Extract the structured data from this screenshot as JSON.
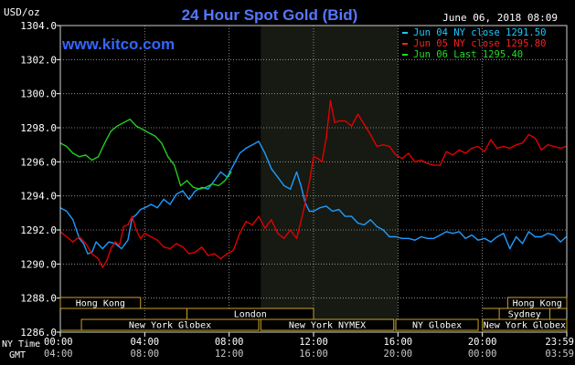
{
  "chart_data": {
    "type": "line",
    "title": "24 Hour Spot Gold (Bid)",
    "website": "www.kitco.com",
    "unit_label": "USD/oz",
    "date_label": "June 06, 2018 08:09",
    "ylim": [
      1286.0,
      1304.0
    ],
    "y_ticks": [
      "1304.0",
      "1302.0",
      "1300.0",
      "1298.0",
      "1296.0",
      "1294.0",
      "1292.0",
      "1290.0",
      "1288.0",
      "1286.0"
    ],
    "x_ticks_ny": [
      "00:00",
      "04:00",
      "08:00",
      "12:00",
      "16:00",
      "20:00",
      "23:59"
    ],
    "x_ticks_gmt": [
      "04:00",
      "08:00",
      "12:00",
      "16:00",
      "20:00",
      "00:00",
      "03:59"
    ],
    "x_label_ny": "NY Time",
    "x_label_gmt": "GMT",
    "colors": {
      "cyan": "#1e9bff",
      "red": "#e00000",
      "green": "#22cc22",
      "title": "#5577ff",
      "axis_text": "#ffffff",
      "grid": "#b0b0b0",
      "box": "#c8a228"
    },
    "legend": [
      {
        "label": "Jun 04 NY close 1291.50",
        "color": "#1ec8ff"
      },
      {
        "label": "Jun 05 NY close 1295.80",
        "color": "#ff1e1e"
      },
      {
        "label": "Jun 06 Last 1295.40",
        "color": "#22dd22"
      }
    ],
    "x_range_hours": [
      0,
      24
    ],
    "highlight_band_hours": [
      9.5,
      16.0
    ],
    "series": [
      {
        "name": "Jun 04 NY close 1291.50",
        "color": "#1e9bff",
        "x": [
          0,
          0.3,
          0.6,
          0.9,
          1.1,
          1.3,
          1.5,
          1.7,
          2.0,
          2.3,
          2.6,
          2.9,
          3.2,
          3.4,
          3.6,
          3.8,
          4.0,
          4.3,
          4.6,
          4.9,
          5.2,
          5.5,
          5.8,
          6.1,
          6.4,
          6.7,
          7.0,
          7.3,
          7.6,
          7.9,
          8.2,
          8.5,
          8.8,
          9.1,
          9.4,
          9.7,
          10.0,
          10.3,
          10.6,
          10.9,
          11.2,
          11.4,
          11.6,
          11.8,
          12.0,
          12.3,
          12.6,
          12.9,
          13.2,
          13.5,
          13.8,
          14.1,
          14.4,
          14.7,
          15.0,
          15.3,
          15.6,
          15.9,
          16.2,
          16.5,
          16.8,
          17.1,
          17.4,
          17.7,
          18.0,
          18.3,
          18.6,
          18.9,
          19.2,
          19.5,
          19.8,
          20.1,
          20.4,
          20.7,
          21.0,
          21.3,
          21.6,
          21.9,
          22.2,
          22.5,
          22.8,
          23.1,
          23.4,
          23.7,
          23.98
        ],
        "values": [
          1293.3,
          1293.1,
          1292.6,
          1291.5,
          1291.2,
          1290.6,
          1290.7,
          1291.3,
          1290.9,
          1291.3,
          1291.2,
          1290.9,
          1291.4,
          1292.7,
          1292.9,
          1293.2,
          1293.3,
          1293.5,
          1293.3,
          1293.8,
          1293.5,
          1294.1,
          1294.3,
          1293.8,
          1294.3,
          1294.5,
          1294.4,
          1294.9,
          1295.4,
          1295.1,
          1295.8,
          1296.5,
          1296.8,
          1297.0,
          1297.2,
          1296.5,
          1295.6,
          1295.1,
          1294.6,
          1294.4,
          1295.4,
          1294.6,
          1293.6,
          1293.1,
          1293.1,
          1293.3,
          1293.4,
          1293.1,
          1293.2,
          1292.8,
          1292.8,
          1292.4,
          1292.3,
          1292.6,
          1292.2,
          1292.0,
          1291.6,
          1291.6,
          1291.5,
          1291.5,
          1291.4,
          1291.6,
          1291.5,
          1291.5,
          1291.7,
          1291.9,
          1291.8,
          1291.9,
          1291.5,
          1291.7,
          1291.4,
          1291.5,
          1291.3,
          1291.6,
          1291.8,
          1290.9,
          1291.6,
          1291.2,
          1291.9,
          1291.6,
          1291.6,
          1291.8,
          1291.7,
          1291.3,
          1291.6
        ]
      },
      {
        "name": "Jun 05 NY close 1295.80",
        "color": "#e00000",
        "x": [
          0,
          0.3,
          0.6,
          0.9,
          1.2,
          1.5,
          1.8,
          2.0,
          2.2,
          2.4,
          2.6,
          2.8,
          3.0,
          3.2,
          3.4,
          3.6,
          3.8,
          4.0,
          4.3,
          4.6,
          4.9,
          5.2,
          5.5,
          5.8,
          6.1,
          6.4,
          6.7,
          7.0,
          7.3,
          7.6,
          7.9,
          8.2,
          8.5,
          8.8,
          9.1,
          9.4,
          9.7,
          10.0,
          10.3,
          10.6,
          10.9,
          11.2,
          11.5,
          11.8,
          12.0,
          12.2,
          12.4,
          12.6,
          12.8,
          13.0,
          13.2,
          13.5,
          13.8,
          14.1,
          14.4,
          14.7,
          15.0,
          15.3,
          15.6,
          15.9,
          16.2,
          16.5,
          16.8,
          17.1,
          17.4,
          17.7,
          18.0,
          18.3,
          18.6,
          18.9,
          19.2,
          19.5,
          19.8,
          20.1,
          20.4,
          20.7,
          21.0,
          21.3,
          21.6,
          21.9,
          22.2,
          22.5,
          22.8,
          23.1,
          23.4,
          23.7,
          23.98
        ],
        "values": [
          1291.9,
          1291.6,
          1291.3,
          1291.6,
          1291.2,
          1290.6,
          1290.3,
          1289.8,
          1290.2,
          1290.9,
          1291.3,
          1291.1,
          1292.2,
          1292.3,
          1292.8,
          1292.0,
          1291.5,
          1291.8,
          1291.6,
          1291.4,
          1291.0,
          1290.9,
          1291.2,
          1291.0,
          1290.6,
          1290.7,
          1291.0,
          1290.5,
          1290.6,
          1290.3,
          1290.6,
          1290.8,
          1291.8,
          1292.5,
          1292.3,
          1292.8,
          1292.1,
          1292.6,
          1291.8,
          1291.5,
          1292.0,
          1291.5,
          1293.0,
          1294.8,
          1296.3,
          1296.2,
          1296.0,
          1297.4,
          1299.6,
          1298.3,
          1298.4,
          1298.4,
          1298.1,
          1298.8,
          1298.2,
          1297.6,
          1296.9,
          1297.0,
          1296.9,
          1296.4,
          1296.2,
          1296.5,
          1296.0,
          1296.1,
          1295.9,
          1295.8,
          1295.8,
          1296.6,
          1296.4,
          1296.7,
          1296.5,
          1296.8,
          1296.9,
          1296.6,
          1297.3,
          1296.8,
          1296.9,
          1296.8,
          1297.0,
          1297.1,
          1297.6,
          1297.4,
          1296.7,
          1297.0,
          1296.9,
          1296.8,
          1296.9
        ]
      },
      {
        "name": "Jun 06 Last 1295.40",
        "color": "#22cc22",
        "x": [
          0,
          0.3,
          0.6,
          0.9,
          1.2,
          1.5,
          1.8,
          2.1,
          2.4,
          2.7,
          3.0,
          3.3,
          3.6,
          3.9,
          4.2,
          4.5,
          4.8,
          5.1,
          5.4,
          5.7,
          6.0,
          6.3,
          6.6,
          6.9,
          7.2,
          7.5,
          7.8,
          8.1
        ],
        "values": [
          1297.1,
          1296.9,
          1296.5,
          1296.3,
          1296.4,
          1296.1,
          1296.3,
          1297.1,
          1297.8,
          1298.1,
          1298.3,
          1298.5,
          1298.1,
          1297.9,
          1297.7,
          1297.5,
          1297.1,
          1296.3,
          1295.8,
          1294.6,
          1294.9,
          1294.5,
          1294.4,
          1294.5,
          1294.7,
          1294.6,
          1294.9,
          1295.4
        ]
      }
    ],
    "markets": [
      {
        "name": "Hong Kong",
        "row": 1,
        "start": 0.0,
        "end": 6.1,
        "label_start": 0.0,
        "label_end": 3.8
      },
      {
        "name": "London",
        "row": 2,
        "start": 3.0,
        "end": 12.0,
        "label_start": 6.0,
        "label_end": 12.0
      },
      {
        "name": "New York Globex",
        "row": 3,
        "start": 0.0,
        "end": 9.4,
        "label_start": 1.0,
        "label_end": 9.4
      },
      {
        "name": "New York NYMEX",
        "row": 3,
        "start": 9.5,
        "end": 15.8,
        "label_start": 9.5,
        "label_end": 15.8
      },
      {
        "name": "NY Globex",
        "row": 3,
        "start": 15.9,
        "end": 19.8,
        "label_start": 15.9,
        "label_end": 19.8
      },
      {
        "name": "Hong Kong",
        "row": 1,
        "start": 20.0,
        "end": 24.0,
        "label_start": 21.2,
        "label_end": 24.0
      },
      {
        "name": "Sydney",
        "row": 2,
        "start": 20.0,
        "end": 24.0,
        "label_start": 20.8,
        "label_end": 23.2
      },
      {
        "name": "New York Globex",
        "row": 3,
        "start": 20.0,
        "end": 24.0,
        "label_start": 20.0,
        "label_end": 24.0
      }
    ]
  }
}
